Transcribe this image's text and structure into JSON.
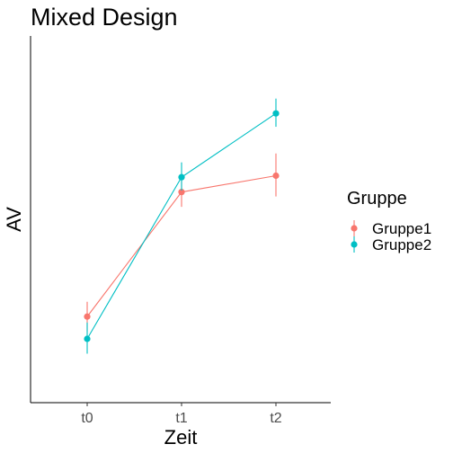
{
  "chart_data": {
    "type": "line",
    "title": "Mixed Design",
    "xlabel": "Zeit",
    "ylabel": "AV",
    "categories": [
      "t0",
      "t1",
      "t2"
    ],
    "ylim": [
      0,
      100
    ],
    "y_ticks_shown": false,
    "grid": false,
    "legend_title": "Gruppe",
    "legend_position": "right",
    "series": [
      {
        "name": "Gruppe1",
        "color": "#F8766D",
        "values": [
          17.5,
          59.5,
          65
        ],
        "error_low": [
          12.5,
          54.5,
          58
        ],
        "error_high": [
          22.5,
          64.5,
          72.5
        ]
      },
      {
        "name": "Gruppe2",
        "color": "#00BFC4",
        "values": [
          10,
          64.5,
          86
        ],
        "error_low": [
          5,
          60,
          81.5
        ],
        "error_high": [
          15.5,
          69.5,
          91
        ]
      }
    ]
  }
}
